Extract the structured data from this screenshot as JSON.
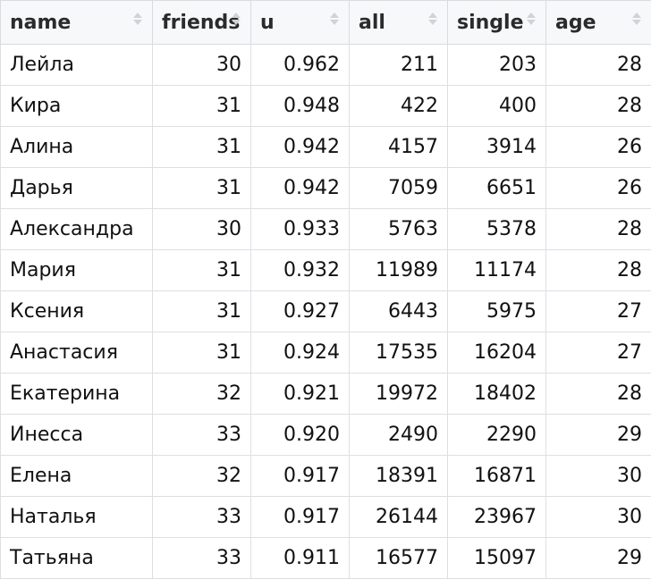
{
  "table": {
    "columns": [
      {
        "key": "name",
        "label": "name"
      },
      {
        "key": "friends",
        "label": "friends"
      },
      {
        "key": "u",
        "label": "u"
      },
      {
        "key": "all",
        "label": "all"
      },
      {
        "key": "single",
        "label": "single"
      },
      {
        "key": "age",
        "label": "age"
      }
    ],
    "rows": [
      {
        "name": "Лейла",
        "friends": "30",
        "u": "0.962",
        "all": "211",
        "single": "203",
        "age": "28"
      },
      {
        "name": "Кира",
        "friends": "31",
        "u": "0.948",
        "all": "422",
        "single": "400",
        "age": "28"
      },
      {
        "name": "Алина",
        "friends": "31",
        "u": "0.942",
        "all": "4157",
        "single": "3914",
        "age": "26"
      },
      {
        "name": "Дарья",
        "friends": "31",
        "u": "0.942",
        "all": "7059",
        "single": "6651",
        "age": "26"
      },
      {
        "name": "Александра",
        "friends": "30",
        "u": "0.933",
        "all": "5763",
        "single": "5378",
        "age": "28"
      },
      {
        "name": "Мария",
        "friends": "31",
        "u": "0.932",
        "all": "11989",
        "single": "11174",
        "age": "28"
      },
      {
        "name": "Ксения",
        "friends": "31",
        "u": "0.927",
        "all": "6443",
        "single": "5975",
        "age": "27"
      },
      {
        "name": "Анастасия",
        "friends": "31",
        "u": "0.924",
        "all": "17535",
        "single": "16204",
        "age": "27"
      },
      {
        "name": "Екатерина",
        "friends": "32",
        "u": "0.921",
        "all": "19972",
        "single": "18402",
        "age": "28"
      },
      {
        "name": "Инесса",
        "friends": "33",
        "u": "0.920",
        "all": "2490",
        "single": "2290",
        "age": "29"
      },
      {
        "name": "Елена",
        "friends": "32",
        "u": "0.917",
        "all": "18391",
        "single": "16871",
        "age": "30"
      },
      {
        "name": "Наталья",
        "friends": "33",
        "u": "0.917",
        "all": "26144",
        "single": "23967",
        "age": "30"
      },
      {
        "name": "Татьяна",
        "friends": "33",
        "u": "0.911",
        "all": "16577",
        "single": "15097",
        "age": "29"
      }
    ]
  }
}
